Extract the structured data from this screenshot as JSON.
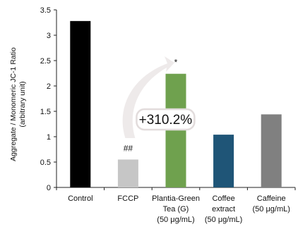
{
  "chart_data": {
    "type": "bar",
    "categories": [
      [
        "Control"
      ],
      [
        "FCCP"
      ],
      [
        "Plantia-Green",
        "Tea (G)",
        "(50 μg/mL)"
      ],
      [
        "Coffee",
        "extract",
        "(50 μg/mL)"
      ],
      [
        "Caffeine",
        "(50 μg/mL)"
      ]
    ],
    "values": [
      3.28,
      0.55,
      2.24,
      1.04,
      1.44
    ],
    "colors": [
      "#000000",
      "#c6c6c6",
      "#6fa14e",
      "#1f5577",
      "#808080"
    ],
    "ylabel_lines": [
      "Aggregate  / Monomeric JC-1 Ratio",
      "(arbitrary unit)"
    ],
    "ylim": [
      0,
      3.5
    ],
    "yticks": [
      "0",
      "0.5",
      "1",
      "1.5",
      "2",
      "2.5",
      "3",
      "3.5"
    ],
    "annotations": [
      {
        "category_index": 1,
        "text": "##"
      },
      {
        "category_index": 2,
        "text": "*"
      }
    ],
    "callout": {
      "text": "+310.2%",
      "from_index": 1,
      "to_index": 2
    },
    "grid": false,
    "legend": "none"
  }
}
